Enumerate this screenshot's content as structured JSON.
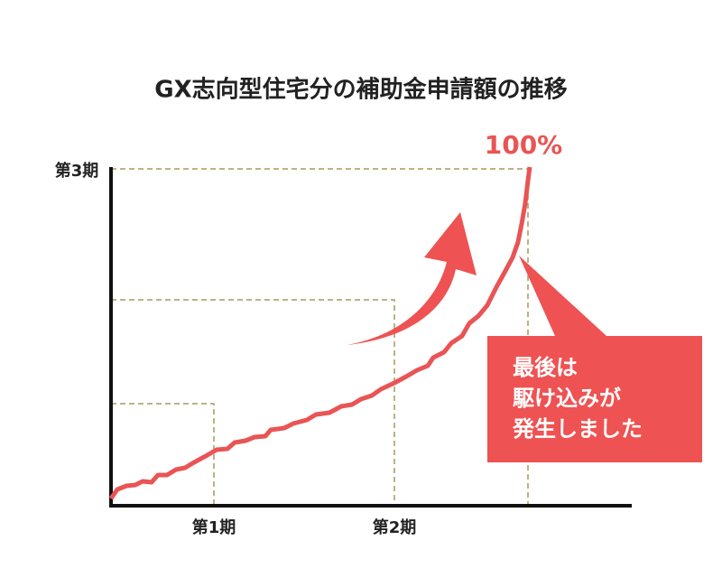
{
  "title": "GX志向型住宅分の補助金申請額の推移",
  "y_label": "第3期",
  "x_labels": [
    "第1期",
    "第2期"
  ],
  "end_label": "100%",
  "callout": [
    "最後は",
    "駆け込みが",
    "発生しました"
  ]
}
